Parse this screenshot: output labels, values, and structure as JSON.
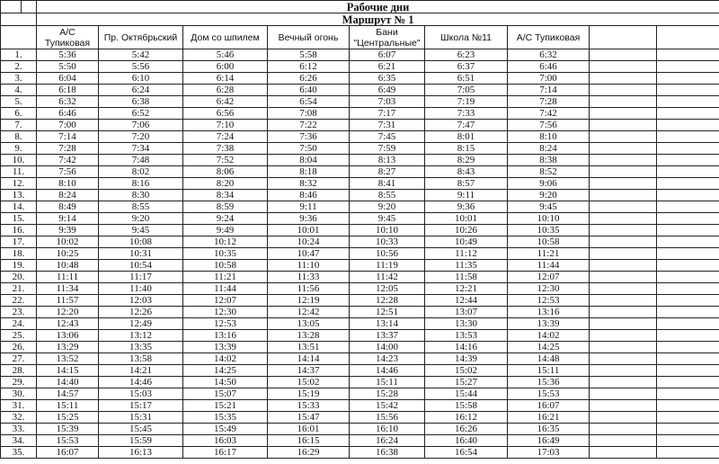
{
  "title": "Рабочие дни",
  "route": "Маршрут № 1",
  "columns": [
    "А/С Тупиковая",
    "Пр. Октябрьский",
    "Дом со шпилем",
    "Вечный огонь",
    "Бани \"Центральные\"",
    "Школа №11",
    "А/С Тупиковая"
  ],
  "rows": [
    [
      "1.",
      "5:36",
      "5:42",
      "5:46",
      "5:58",
      "6:07",
      "6:23",
      "6:32"
    ],
    [
      "2.",
      "5:50",
      "5:56",
      "6:00",
      "6:12",
      "6:21",
      "6:37",
      "6:46"
    ],
    [
      "3.",
      "6:04",
      "6:10",
      "6:14",
      "6:26",
      "6:35",
      "6:51",
      "7:00"
    ],
    [
      "4.",
      "6:18",
      "6:24",
      "6:28",
      "6:40",
      "6:49",
      "7:05",
      "7:14"
    ],
    [
      "5.",
      "6:32",
      "6:38",
      "6:42",
      "6:54",
      "7:03",
      "7:19",
      "7:28"
    ],
    [
      "6.",
      "6:46",
      "6:52",
      "6:56",
      "7:08",
      "7:17",
      "7:33",
      "7:42"
    ],
    [
      "7.",
      "7:00",
      "7:06",
      "7:10",
      "7:22",
      "7:31",
      "7:47",
      "7:56"
    ],
    [
      "8.",
      "7:14",
      "7:20",
      "7:24",
      "7:36",
      "7:45",
      "8:01",
      "8:10"
    ],
    [
      "9.",
      "7:28",
      "7:34",
      "7:38",
      "7:50",
      "7:59",
      "8:15",
      "8:24"
    ],
    [
      "10.",
      "7:42",
      "7:48",
      "7:52",
      "8:04",
      "8:13",
      "8:29",
      "8:38"
    ],
    [
      "11.",
      "7:56",
      "8:02",
      "8:06",
      "8:18",
      "8:27",
      "8:43",
      "8:52"
    ],
    [
      "12.",
      "8:10",
      "8:16",
      "8:20",
      "8:32",
      "8:41",
      "8:57",
      "9:06"
    ],
    [
      "13.",
      "8:24",
      "8:30",
      "8:34",
      "8:46",
      "8:55",
      "9:11",
      "9:20"
    ],
    [
      "14.",
      "8:49",
      "8:55",
      "8:59",
      "9:11",
      "9:20",
      "9:36",
      "9:45"
    ],
    [
      "15.",
      "9:14",
      "9:20",
      "9:24",
      "9:36",
      "9:45",
      "10:01",
      "10:10"
    ],
    [
      "16.",
      "9:39",
      "9:45",
      "9:49",
      "10:01",
      "10:10",
      "10:26",
      "10:35"
    ],
    [
      "17.",
      "10:02",
      "10:08",
      "10:12",
      "10:24",
      "10:33",
      "10:49",
      "10:58"
    ],
    [
      "18.",
      "10:25",
      "10:31",
      "10:35",
      "10:47",
      "10:56",
      "11:12",
      "11:21"
    ],
    [
      "19.",
      "10:48",
      "10:54",
      "10:58",
      "11:10",
      "11:19",
      "11:35",
      "11:44"
    ],
    [
      "20.",
      "11:11",
      "11:17",
      "11:21",
      "11:33",
      "11:42",
      "11:58",
      "12:07"
    ],
    [
      "21.",
      "11:34",
      "11:40",
      "11:44",
      "11:56",
      "12:05",
      "12:21",
      "12:30"
    ],
    [
      "22.",
      "11:57",
      "12:03",
      "12:07",
      "12:19",
      "12:28",
      "12:44",
      "12:53"
    ],
    [
      "23.",
      "12:20",
      "12:26",
      "12:30",
      "12:42",
      "12:51",
      "13:07",
      "13:16"
    ],
    [
      "24.",
      "12:43",
      "12:49",
      "12:53",
      "13:05",
      "13:14",
      "13:30",
      "13:39"
    ],
    [
      "25.",
      "13:06",
      "13:12",
      "13:16",
      "13:28",
      "13:37",
      "13:53",
      "14:02"
    ],
    [
      "26.",
      "13:29",
      "13:35",
      "13:39",
      "13:51",
      "14:00",
      "14:16",
      "14:25"
    ],
    [
      "27.",
      "13:52",
      "13:58",
      "14:02",
      "14:14",
      "14:23",
      "14:39",
      "14:48"
    ],
    [
      "28.",
      "14:15",
      "14:21",
      "14:25",
      "14:37",
      "14:46",
      "15:02",
      "15:11"
    ],
    [
      "29.",
      "14:40",
      "14:46",
      "14:50",
      "15:02",
      "15:11",
      "15:27",
      "15:36"
    ],
    [
      "30.",
      "14:57",
      "15:03",
      "15:07",
      "15:19",
      "15:28",
      "15:44",
      "15:53"
    ],
    [
      "31.",
      "15:11",
      "15:17",
      "15:21",
      "15:33",
      "15:42",
      "15:58",
      "16:07"
    ],
    [
      "32.",
      "15:25",
      "15:31",
      "15:35",
      "15:47",
      "15:56",
      "16:12",
      "16:21"
    ],
    [
      "33.",
      "15:39",
      "15:45",
      "15:49",
      "16:01",
      "16:10",
      "16:26",
      "16:35"
    ],
    [
      "34.",
      "15:53",
      "15:59",
      "16:03",
      "16:15",
      "16:24",
      "16:40",
      "16:49"
    ],
    [
      "35.",
      "16:07",
      "16:13",
      "16:17",
      "16:29",
      "16:38",
      "16:54",
      "17:03"
    ]
  ]
}
